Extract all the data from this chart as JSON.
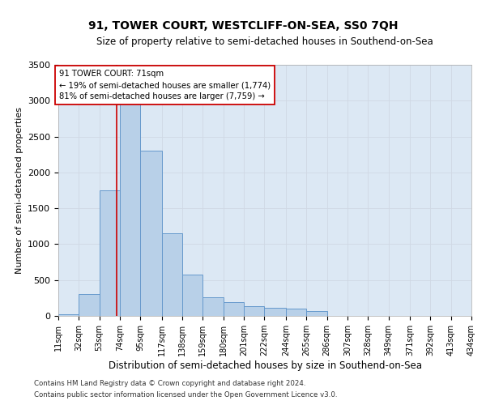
{
  "title": "91, TOWER COURT, WESTCLIFF-ON-SEA, SS0 7QH",
  "subtitle": "Size of property relative to semi-detached houses in Southend-on-Sea",
  "xlabel": "Distribution of semi-detached houses by size in Southend-on-Sea",
  "ylabel": "Number of semi-detached properties",
  "footnote1": "Contains HM Land Registry data © Crown copyright and database right 2024.",
  "footnote2": "Contains public sector information licensed under the Open Government Licence v3.0.",
  "annotation_title": "91 TOWER COURT: 71sqm",
  "annotation_line1": "← 19% of semi-detached houses are smaller (1,774)",
  "annotation_line2": "81% of semi-detached houses are larger (7,759) →",
  "property_size": 71,
  "bin_starts": [
    11,
    32,
    53,
    74,
    95,
    117,
    138,
    159,
    180,
    201,
    222,
    244,
    265,
    286,
    307,
    328,
    349,
    371,
    392,
    413
  ],
  "bin_labels": [
    "11sqm",
    "32sqm",
    "53sqm",
    "74sqm",
    "95sqm",
    "117sqm",
    "138sqm",
    "159sqm",
    "180sqm",
    "201sqm",
    "222sqm",
    "244sqm",
    "265sqm",
    "286sqm",
    "307sqm",
    "328sqm",
    "349sqm",
    "371sqm",
    "392sqm",
    "413sqm",
    "434sqm"
  ],
  "counts": [
    20,
    300,
    1750,
    3050,
    2300,
    1150,
    580,
    260,
    190,
    130,
    110,
    100,
    70,
    0,
    0,
    0,
    0,
    0,
    0,
    0
  ],
  "bar_color": "#b8d0e8",
  "bar_edge_color": "#6699cc",
  "vline_color": "#cc0000",
  "grid_color": "#d0d8e4",
  "bg_color": "#dce8f4",
  "ylim": [
    0,
    3500
  ],
  "yticks": [
    0,
    500,
    1000,
    1500,
    2000,
    2500,
    3000,
    3500
  ],
  "title_fontsize": 10,
  "subtitle_fontsize": 8.5,
  "ylabel_fontsize": 8,
  "xlabel_fontsize": 8.5,
  "tick_fontsize": 8,
  "xtick_fontsize": 7
}
